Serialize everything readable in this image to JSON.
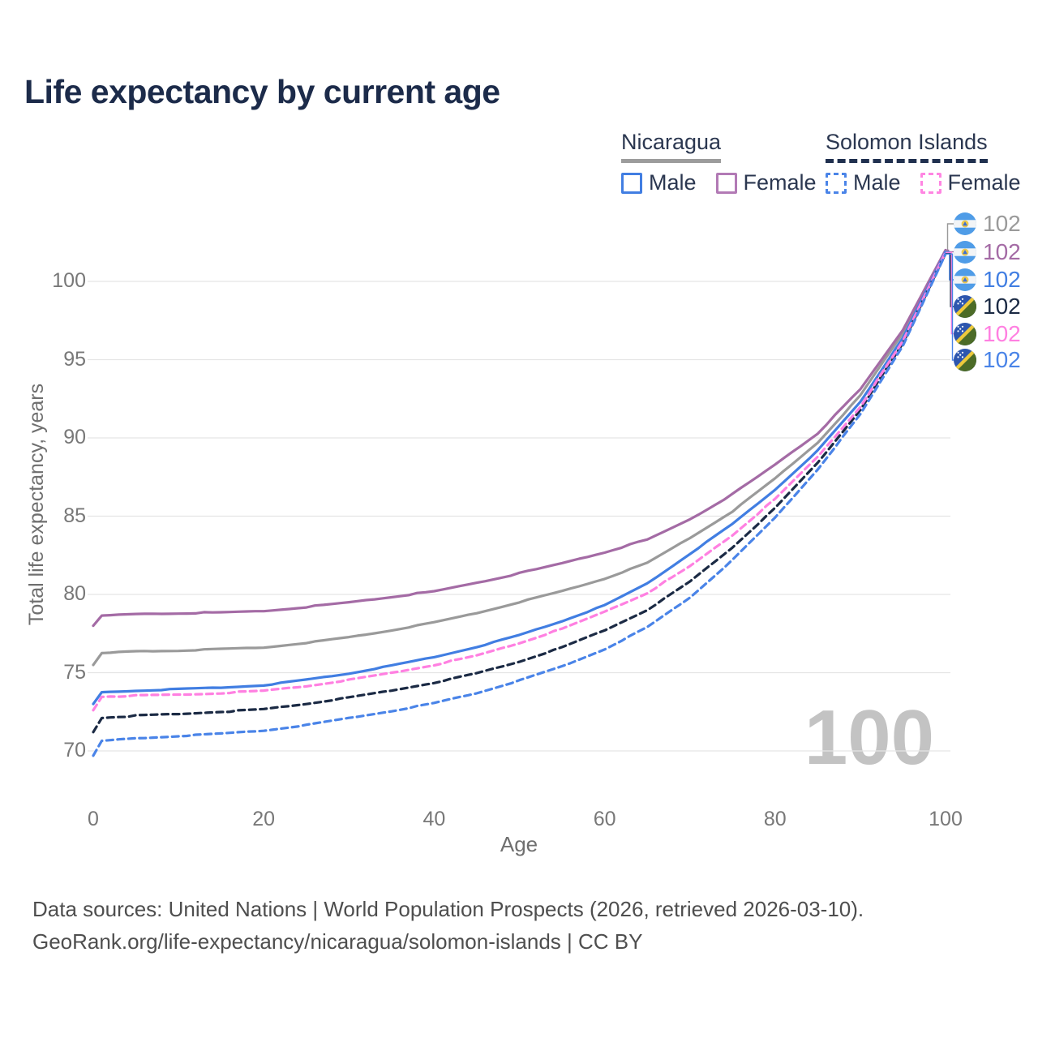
{
  "title": "Life expectancy by current age",
  "legend": {
    "groups": [
      {
        "country": "Nicaragua",
        "line_style": "solid",
        "underline_color": "#9c9c9c",
        "items": [
          {
            "label": "Male",
            "color": "#417ee2",
            "dashed": false
          },
          {
            "label": "Female",
            "color": "#b27ab5",
            "dashed": false
          }
        ]
      },
      {
        "country": "Solomon Islands",
        "line_style": "dashed",
        "underline_color": "#20304f",
        "items": [
          {
            "label": "Male",
            "color": "#4a84e8",
            "dashed": true
          },
          {
            "label": "Female",
            "color": "#ff85e2",
            "dashed": true
          }
        ]
      }
    ]
  },
  "axes": {
    "x": {
      "title": "Age",
      "ticks": [
        0,
        20,
        40,
        60,
        80,
        100
      ],
      "range": [
        0,
        100
      ]
    },
    "y": {
      "title": "Total life expectancy, years",
      "ticks": [
        70,
        75,
        80,
        85,
        90,
        95,
        100
      ],
      "range": [
        67.5,
        103
      ]
    }
  },
  "watermark_age": "100",
  "chart_data": {
    "type": "line",
    "title": "Life expectancy by current age",
    "xlabel": "Age",
    "ylabel": "Total life expectancy, years",
    "xlim": [
      0,
      100
    ],
    "ylim": [
      67.5,
      103
    ],
    "grid": "horizontal",
    "x": [
      0,
      1,
      5,
      10,
      15,
      20,
      25,
      30,
      35,
      40,
      45,
      50,
      55,
      60,
      65,
      70,
      75,
      80,
      85,
      90,
      95,
      100
    ],
    "series": [
      {
        "name": "Nicaragua — Both sexes",
        "country": "Nicaragua",
        "sex": "both",
        "color": "#9a9a9a",
        "dashed": false,
        "end_label": "102",
        "values": [
          75.5,
          76.25,
          76.35,
          76.4,
          76.5,
          76.6,
          76.9,
          77.25,
          77.7,
          78.2,
          78.8,
          79.5,
          80.2,
          81.0,
          82.0,
          83.6,
          85.3,
          87.4,
          89.7,
          92.7,
          96.7,
          101.95
        ]
      },
      {
        "name": "Nicaragua — Female",
        "country": "Nicaragua",
        "sex": "female",
        "color": "#a46ba5",
        "dashed": false,
        "end_label": "102",
        "values": [
          78.0,
          78.65,
          78.75,
          78.8,
          78.85,
          78.95,
          79.2,
          79.5,
          79.85,
          80.2,
          80.75,
          81.35,
          82.0,
          82.7,
          83.5,
          84.8,
          86.4,
          88.3,
          90.3,
          93.1,
          96.9,
          102.0
        ]
      },
      {
        "name": "Nicaragua — Male",
        "country": "Nicaragua",
        "sex": "male",
        "color": "#417ee2",
        "dashed": false,
        "end_label": "102",
        "values": [
          73.0,
          73.75,
          73.85,
          73.95,
          74.05,
          74.2,
          74.55,
          74.95,
          75.45,
          76.0,
          76.65,
          77.4,
          78.3,
          79.3,
          80.7,
          82.6,
          84.5,
          86.7,
          89.2,
          92.3,
          96.4,
          101.9
        ]
      },
      {
        "name": "Solomon Islands — Both sexes",
        "country": "Solomon Islands",
        "sex": "both",
        "color": "#1b2a44",
        "dashed": true,
        "end_label": "102",
        "values": [
          71.2,
          72.1,
          72.25,
          72.35,
          72.5,
          72.65,
          73.0,
          73.4,
          73.85,
          74.35,
          74.95,
          75.7,
          76.6,
          77.7,
          79.0,
          80.8,
          83.0,
          85.5,
          88.4,
          91.8,
          96.05,
          101.8
        ]
      },
      {
        "name": "Solomon Islands — Female",
        "country": "Solomon Islands",
        "sex": "female",
        "color": "#ff80e1",
        "dashed": true,
        "end_label": "102",
        "values": [
          72.6,
          73.45,
          73.55,
          73.6,
          73.7,
          73.85,
          74.15,
          74.55,
          75.0,
          75.5,
          76.1,
          76.9,
          77.8,
          78.9,
          80.1,
          81.8,
          83.8,
          86.1,
          88.8,
          92.0,
          96.2,
          101.85
        ]
      },
      {
        "name": "Solomon Islands — Male",
        "country": "Solomon Islands",
        "sex": "male",
        "color": "#4a84e8",
        "dashed": true,
        "end_label": "102",
        "values": [
          69.7,
          70.65,
          70.8,
          70.95,
          71.1,
          71.3,
          71.65,
          72.1,
          72.55,
          73.05,
          73.7,
          74.5,
          75.4,
          76.5,
          77.9,
          79.8,
          82.2,
          84.9,
          88.0,
          91.5,
          95.9,
          101.75
        ]
      }
    ]
  },
  "end_labels": [
    {
      "value": "102",
      "color": "#9a9a9a",
      "flag": "nicaragua-flag-icon",
      "series": "Nicaragua — Both sexes"
    },
    {
      "value": "102",
      "color": "#a46ba5",
      "flag": "nicaragua-flag-icon",
      "series": "Nicaragua — Female"
    },
    {
      "value": "102",
      "color": "#417ee2",
      "flag": "nicaragua-flag-icon",
      "series": "Nicaragua — Male"
    },
    {
      "value": "102",
      "color": "#1b2a44",
      "flag": "solomon-islands-flag-icon",
      "series": "Solomon Islands — Both sexes"
    },
    {
      "value": "102",
      "color": "#ff80e1",
      "flag": "solomon-islands-flag-icon",
      "series": "Solomon Islands — Female"
    },
    {
      "value": "102",
      "color": "#4a84e8",
      "flag": "solomon-islands-flag-icon",
      "series": "Solomon Islands — Male"
    }
  ],
  "footer": {
    "line1": "Data sources: United Nations | World Population Prospects (2026, retrieved 2026-03-10).",
    "line2": "GeoRank.org/life-expectancy/nicaragua/solomon-islands | CC BY"
  }
}
